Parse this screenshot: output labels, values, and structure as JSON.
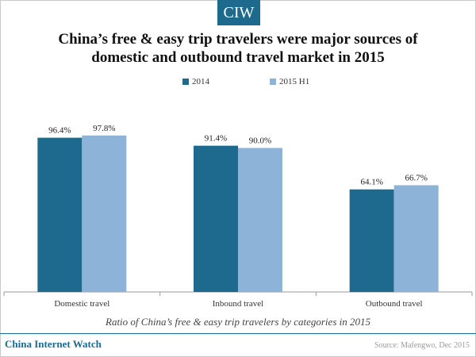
{
  "brand": {
    "badge": "CIW",
    "footer": "China Internet Watch"
  },
  "source": "Source: Mafengwo, Dec 2015",
  "colors": {
    "series_2014": "#1d6a8e",
    "series_2015h1": "#8db3d9",
    "brand": "#1d6a8e"
  },
  "chart_data": {
    "type": "bar",
    "title_lines": [
      "China’s free & easy trip travelers were major sources of",
      "domestic and outbound travel market in 2015"
    ],
    "subtitle": "Ratio of China’s free & easy trip travelers by categories in 2015",
    "categories": [
      "Domestic travel",
      "Inbound travel",
      "Outbound travel"
    ],
    "series": [
      {
        "name": "2014",
        "values": [
          96.4,
          91.4,
          64.1
        ],
        "labels": [
          "96.4%",
          "91.4%",
          "64.1%"
        ]
      },
      {
        "name": "2015 H1",
        "values": [
          97.8,
          90.0,
          66.7
        ],
        "labels": [
          "97.8%",
          "90.0%",
          "66.7%"
        ]
      }
    ],
    "ylim": [
      0,
      120
    ],
    "legend_position": "top-center",
    "grid": false
  }
}
